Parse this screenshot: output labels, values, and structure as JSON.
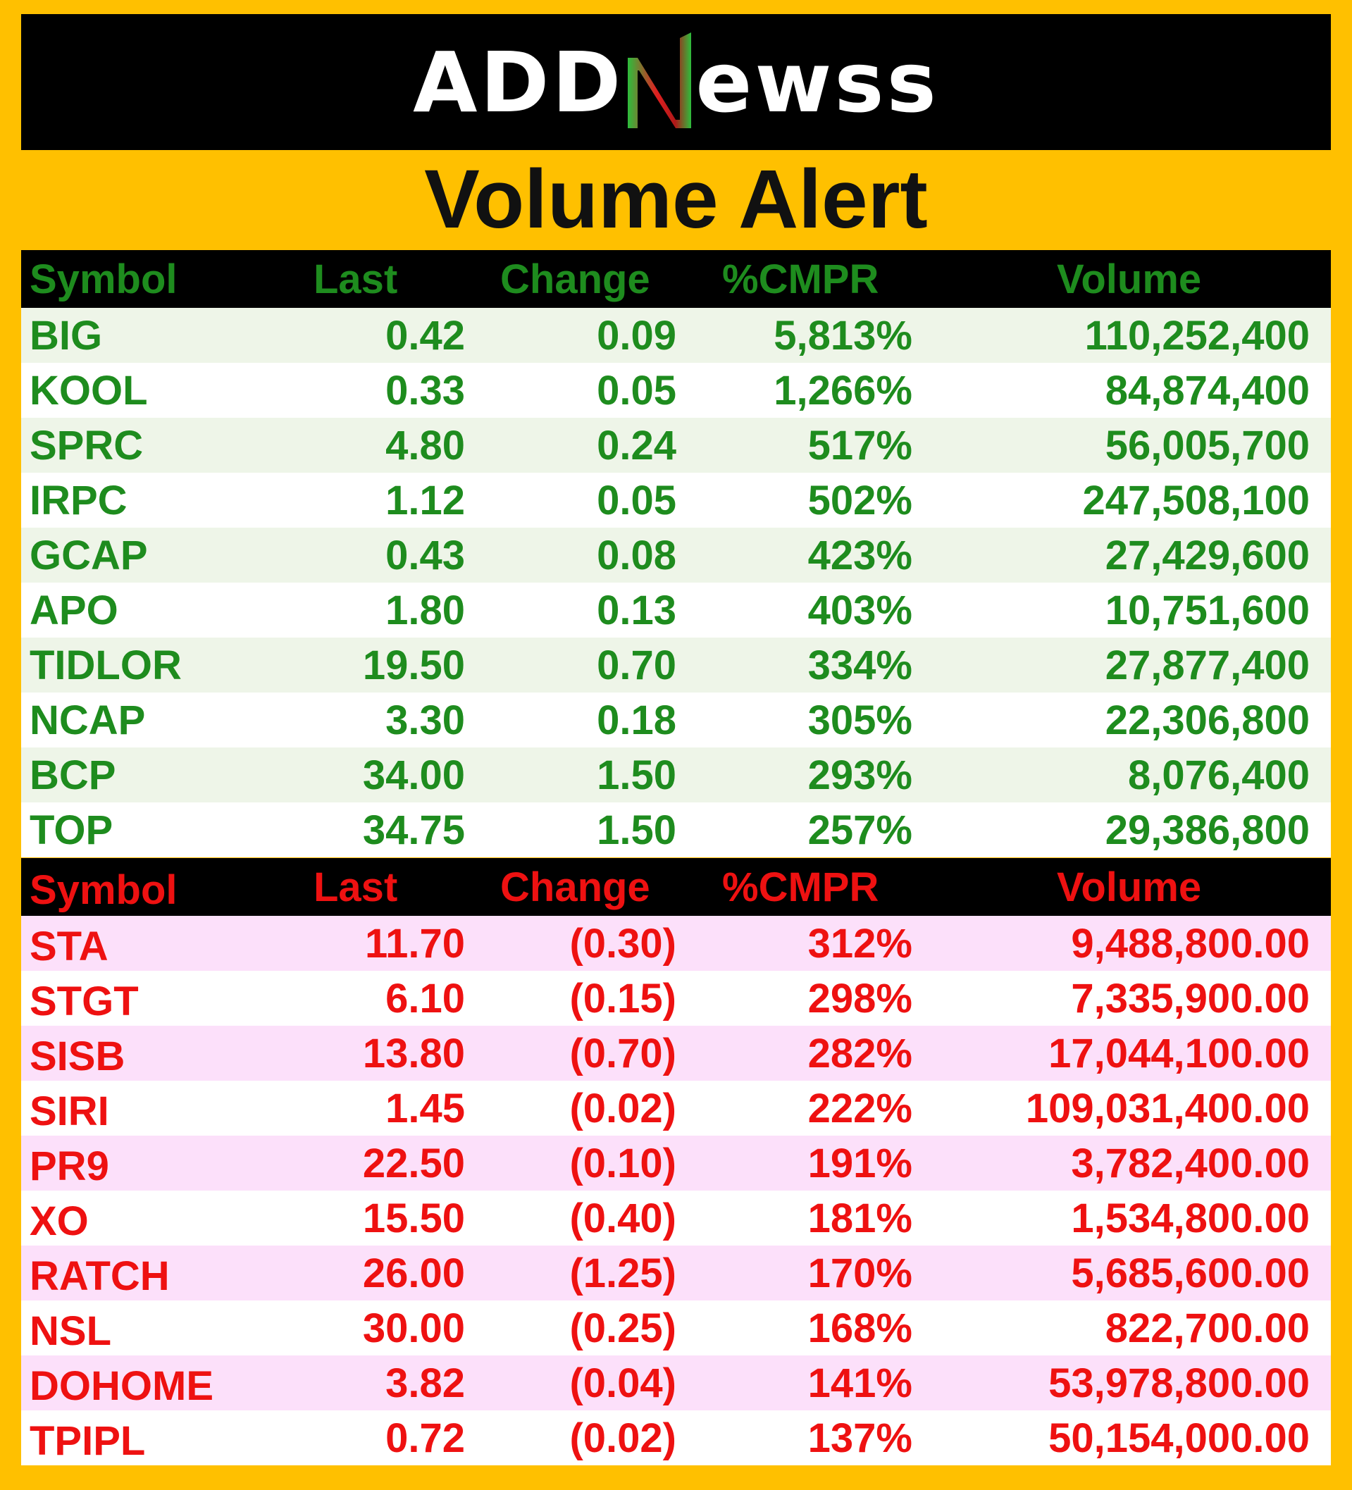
{
  "brand": {
    "logo_text": "ADDNewss",
    "logo_prefix": "ADD",
    "logo_suffix": "ewss",
    "colors": {
      "red": "#E02020",
      "green": "#2DBE3C"
    }
  },
  "title": "Volume Alert",
  "columns": [
    "Symbol",
    "Last",
    "Change",
    "%CMPR",
    "Volume"
  ],
  "gainers": {
    "color": "#1E8C1E",
    "rows": [
      [
        "BIG",
        "0.42",
        "0.09",
        "5,813%",
        "110,252,400"
      ],
      [
        "KOOL",
        "0.33",
        "0.05",
        "1,266%",
        "84,874,400"
      ],
      [
        "SPRC",
        "4.80",
        "0.24",
        "517%",
        "56,005,700"
      ],
      [
        "IRPC",
        "1.12",
        "0.05",
        "502%",
        "247,508,100"
      ],
      [
        "GCAP",
        "0.43",
        "0.08",
        "423%",
        "27,429,600"
      ],
      [
        "APO",
        "1.80",
        "0.13",
        "403%",
        "10,751,600"
      ],
      [
        "TIDLOR",
        "19.50",
        "0.70",
        "334%",
        "27,877,400"
      ],
      [
        "NCAP",
        "3.30",
        "0.18",
        "305%",
        "22,306,800"
      ],
      [
        "BCP",
        "34.00",
        "1.50",
        "293%",
        "8,076,400"
      ],
      [
        "TOP",
        "34.75",
        "1.50",
        "257%",
        "29,386,800"
      ]
    ]
  },
  "losers": {
    "color": "#EE1111",
    "rows": [
      [
        "STA",
        "11.70",
        "(0.30)",
        "312%",
        "9,488,800.00"
      ],
      [
        "STGT",
        "6.10",
        "(0.15)",
        "298%",
        "7,335,900.00"
      ],
      [
        "SISB",
        "13.80",
        "(0.70)",
        "282%",
        "17,044,100.00"
      ],
      [
        "SIRI",
        "1.45",
        "(0.02)",
        "222%",
        "109,031,400.00"
      ],
      [
        "PR9",
        "22.50",
        "(0.10)",
        "191%",
        "3,782,400.00"
      ],
      [
        "XO",
        "15.50",
        "(0.40)",
        "181%",
        "1,534,800.00"
      ],
      [
        "RATCH",
        "26.00",
        "(1.25)",
        "170%",
        "5,685,600.00"
      ],
      [
        "NSL",
        "30.00",
        "(0.25)",
        "168%",
        "822,700.00"
      ],
      [
        "DOHOME",
        "3.82",
        "(0.04)",
        "141%",
        "53,978,800.00"
      ],
      [
        "TPIPL",
        "0.72",
        "(0.02)",
        "137%",
        "50,154,000.00"
      ]
    ]
  }
}
